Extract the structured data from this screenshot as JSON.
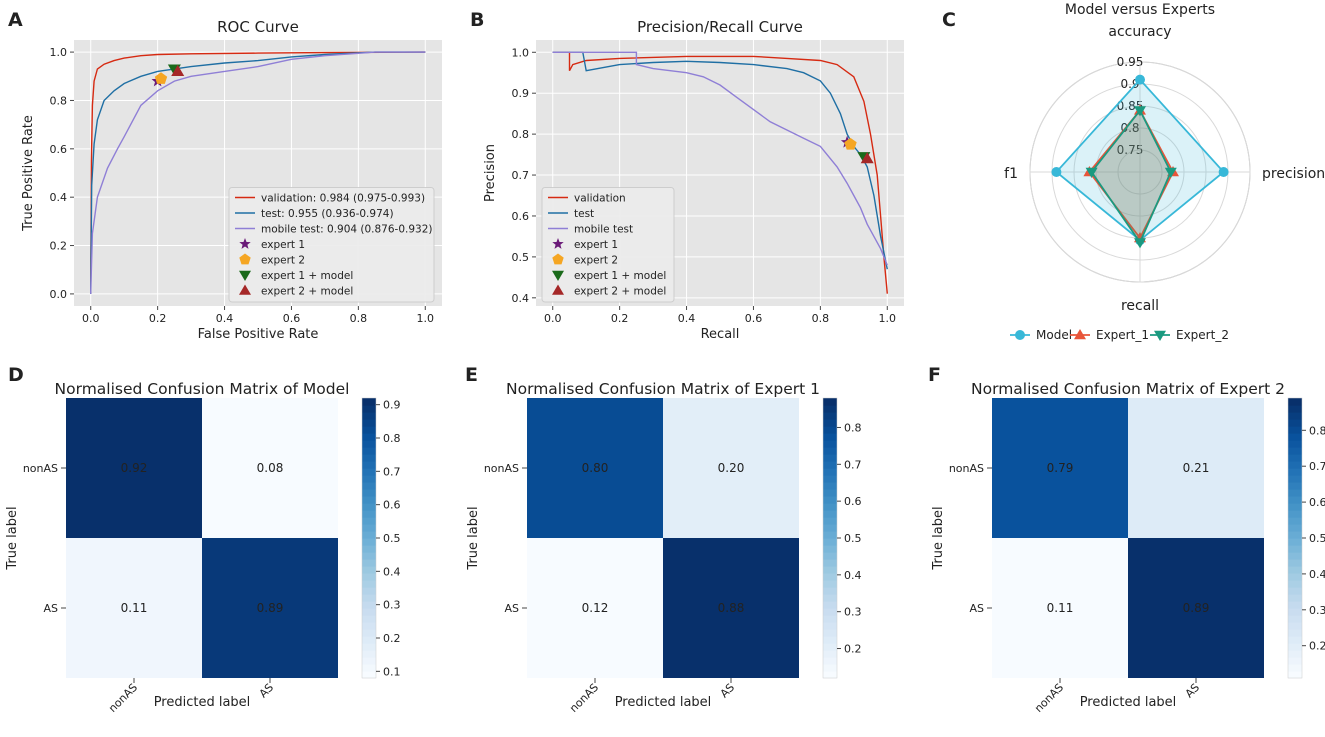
{
  "panel_letters": [
    "A",
    "B",
    "C",
    "D",
    "E",
    "F"
  ],
  "colors": {
    "validation": "#d62a12",
    "test": "#1f6fa4",
    "mobile": "#8f7fd6",
    "expert1": "#6a1a78",
    "expert2": "#f5a623",
    "expert1_model": "#1a6a1a",
    "expert2_model": "#a52828",
    "radar_model": "#38b8d8",
    "radar_e1": "#e8553a",
    "radar_e2": "#1a9a80",
    "plot_bg": "#e5e5e5",
    "grid": "#ffffff"
  },
  "chart_data": [
    {
      "id": "A",
      "type": "line",
      "title": "ROC Curve",
      "xlabel": "False Positive Rate",
      "ylabel": "True Positive Rate",
      "xlim": [
        -0.05,
        1.05
      ],
      "ylim": [
        -0.05,
        1.05
      ],
      "xticks": [
        0.0,
        0.2,
        0.4,
        0.6,
        0.8,
        1.0
      ],
      "yticks": [
        0.0,
        0.2,
        0.4,
        0.6,
        0.8,
        1.0
      ],
      "xtick_labels": [
        "0.0",
        "0.2",
        "0.4",
        "0.6",
        "0.8",
        "1.0"
      ],
      "ytick_labels": [
        "0.0",
        "0.2",
        "0.4",
        "0.6",
        "0.8",
        "1.0"
      ],
      "legend_position": "bottom-right",
      "series": [
        {
          "key": "validation",
          "label": "validation: 0.984 (0.975-0.993)",
          "color_key": "validation",
          "points": [
            [
              0,
              0
            ],
            [
              0.002,
              0.55
            ],
            [
              0.005,
              0.78
            ],
            [
              0.01,
              0.88
            ],
            [
              0.02,
              0.93
            ],
            [
              0.04,
              0.95
            ],
            [
              0.07,
              0.965
            ],
            [
              0.1,
              0.975
            ],
            [
              0.15,
              0.985
            ],
            [
              0.2,
              0.99
            ],
            [
              0.3,
              0.993
            ],
            [
              0.5,
              0.996
            ],
            [
              0.7,
              0.998
            ],
            [
              1.0,
              1.0
            ]
          ]
        },
        {
          "key": "test",
          "label": "test: 0.955 (0.936-0.974)",
          "color_key": "test",
          "points": [
            [
              0,
              0
            ],
            [
              0.003,
              0.45
            ],
            [
              0.01,
              0.62
            ],
            [
              0.02,
              0.72
            ],
            [
              0.04,
              0.8
            ],
            [
              0.07,
              0.84
            ],
            [
              0.1,
              0.87
            ],
            [
              0.15,
              0.9
            ],
            [
              0.2,
              0.92
            ],
            [
              0.3,
              0.94
            ],
            [
              0.4,
              0.955
            ],
            [
              0.5,
              0.965
            ],
            [
              0.6,
              0.98
            ],
            [
              0.7,
              0.99
            ],
            [
              0.85,
              1.0
            ],
            [
              1.0,
              1.0
            ]
          ]
        },
        {
          "key": "mobile",
          "label": "mobile test: 0.904 (0.876-0.932)",
          "color_key": "mobile",
          "points": [
            [
              0,
              0
            ],
            [
              0.005,
              0.25
            ],
            [
              0.02,
              0.4
            ],
            [
              0.05,
              0.52
            ],
            [
              0.08,
              0.6
            ],
            [
              0.1,
              0.65
            ],
            [
              0.15,
              0.78
            ],
            [
              0.2,
              0.84
            ],
            [
              0.25,
              0.88
            ],
            [
              0.3,
              0.9
            ],
            [
              0.4,
              0.92
            ],
            [
              0.5,
              0.94
            ],
            [
              0.6,
              0.97
            ],
            [
              0.7,
              0.985
            ],
            [
              0.8,
              0.995
            ],
            [
              0.85,
              1.0
            ],
            [
              1.0,
              1.0
            ]
          ]
        }
      ],
      "markers": [
        {
          "key": "expert1",
          "label": "expert 1",
          "shape": "star",
          "x": 0.2,
          "y": 0.88,
          "color_key": "expert1"
        },
        {
          "key": "expert2",
          "label": "expert 2",
          "shape": "pentagon",
          "x": 0.21,
          "y": 0.89,
          "color_key": "expert2"
        },
        {
          "key": "expert1_model",
          "label": "expert 1 + model",
          "shape": "triangle-down",
          "x": 0.25,
          "y": 0.93,
          "color_key": "expert1_model"
        },
        {
          "key": "expert2_model",
          "label": "expert 2 + model",
          "shape": "triangle-up",
          "x": 0.26,
          "y": 0.92,
          "color_key": "expert2_model"
        }
      ]
    },
    {
      "id": "B",
      "type": "line",
      "title": "Precision/Recall Curve",
      "xlabel": "Recall",
      "ylabel": "Precision",
      "xlim": [
        -0.05,
        1.05
      ],
      "ylim": [
        0.38,
        1.03
      ],
      "xticks": [
        0.0,
        0.2,
        0.4,
        0.6,
        0.8,
        1.0
      ],
      "yticks": [
        0.4,
        0.5,
        0.6,
        0.7,
        0.8,
        0.9,
        1.0
      ],
      "xtick_labels": [
        "0.0",
        "0.2",
        "0.4",
        "0.6",
        "0.8",
        "1.0"
      ],
      "ytick_labels": [
        "0.4",
        "0.5",
        "0.6",
        "0.7",
        "0.8",
        "0.9",
        "1.0"
      ],
      "legend_position": "bottom-left",
      "series": [
        {
          "key": "validation",
          "label": "validation",
          "color_key": "validation",
          "points": [
            [
              0,
              1.0
            ],
            [
              0.05,
              1.0
            ],
            [
              0.05,
              0.955
            ],
            [
              0.06,
              0.97
            ],
            [
              0.1,
              0.98
            ],
            [
              0.2,
              0.985
            ],
            [
              0.4,
              0.99
            ],
            [
              0.6,
              0.99
            ],
            [
              0.7,
              0.985
            ],
            [
              0.8,
              0.98
            ],
            [
              0.85,
              0.97
            ],
            [
              0.9,
              0.94
            ],
            [
              0.93,
              0.88
            ],
            [
              0.95,
              0.8
            ],
            [
              0.97,
              0.7
            ],
            [
              0.98,
              0.6
            ],
            [
              0.99,
              0.5
            ],
            [
              1.0,
              0.41
            ]
          ]
        },
        {
          "key": "test",
          "label": "test",
          "color_key": "test",
          "points": [
            [
              0,
              1.0
            ],
            [
              0.09,
              1.0
            ],
            [
              0.1,
              0.955
            ],
            [
              0.2,
              0.97
            ],
            [
              0.3,
              0.975
            ],
            [
              0.4,
              0.978
            ],
            [
              0.5,
              0.975
            ],
            [
              0.6,
              0.97
            ],
            [
              0.7,
              0.96
            ],
            [
              0.75,
              0.95
            ],
            [
              0.8,
              0.93
            ],
            [
              0.83,
              0.9
            ],
            [
              0.86,
              0.85
            ],
            [
              0.88,
              0.8
            ],
            [
              0.9,
              0.77
            ],
            [
              0.92,
              0.75
            ],
            [
              0.94,
              0.72
            ],
            [
              0.96,
              0.65
            ],
            [
              0.98,
              0.55
            ],
            [
              1.0,
              0.47
            ]
          ]
        },
        {
          "key": "mobile",
          "label": "mobile test",
          "color_key": "mobile",
          "points": [
            [
              0,
              1.0
            ],
            [
              0.25,
              1.0
            ],
            [
              0.25,
              0.97
            ],
            [
              0.3,
              0.96
            ],
            [
              0.4,
              0.95
            ],
            [
              0.45,
              0.94
            ],
            [
              0.5,
              0.92
            ],
            [
              0.55,
              0.89
            ],
            [
              0.6,
              0.86
            ],
            [
              0.65,
              0.83
            ],
            [
              0.7,
              0.81
            ],
            [
              0.75,
              0.79
            ],
            [
              0.8,
              0.77
            ],
            [
              0.85,
              0.72
            ],
            [
              0.88,
              0.68
            ],
            [
              0.9,
              0.65
            ],
            [
              0.92,
              0.62
            ],
            [
              0.94,
              0.58
            ],
            [
              0.96,
              0.55
            ],
            [
              0.98,
              0.52
            ],
            [
              1.0,
              0.48
            ]
          ]
        }
      ],
      "markers": [
        {
          "key": "expert1",
          "label": "expert 1",
          "shape": "star",
          "x": 0.88,
          "y": 0.78,
          "color_key": "expert1"
        },
        {
          "key": "expert2",
          "label": "expert 2",
          "shape": "pentagon",
          "x": 0.89,
          "y": 0.775,
          "color_key": "expert2"
        },
        {
          "key": "expert1_model",
          "label": "expert 1 + model",
          "shape": "triangle-down",
          "x": 0.93,
          "y": 0.745,
          "color_key": "expert1_model"
        },
        {
          "key": "expert2_model",
          "label": "expert 2 + model",
          "shape": "triangle-up",
          "x": 0.94,
          "y": 0.74,
          "color_key": "expert2_model"
        }
      ]
    },
    {
      "id": "C",
      "type": "radar",
      "title": "Model versus Experts",
      "axes": [
        "accuracy",
        "precision",
        "recall",
        "f1"
      ],
      "rmin": 0.7,
      "rmax": 0.95,
      "rticks": [
        0.75,
        0.8,
        0.85,
        0.9,
        0.95
      ],
      "rtick_labels": [
        "0.75",
        "0.8",
        "0.85",
        "0.9",
        "0.95"
      ],
      "series": [
        {
          "name": "Model",
          "values": [
            0.91,
            0.89,
            0.855,
            0.89
          ],
          "color_key": "radar_model",
          "marker": "circle"
        },
        {
          "name": "Expert_1",
          "values": [
            0.84,
            0.775,
            0.85,
            0.815
          ],
          "color_key": "radar_e1",
          "marker": "triangle-up"
        },
        {
          "name": "Expert_2",
          "values": [
            0.84,
            0.77,
            0.86,
            0.81
          ],
          "color_key": "radar_e2",
          "marker": "triangle-down"
        }
      ]
    },
    {
      "id": "D",
      "type": "heatmap",
      "title": "Normalised Confusion Matrix of Model",
      "xlabel": "Predicted label",
      "ylabel": "True label",
      "row_labels": [
        "nonAS",
        "AS"
      ],
      "col_labels": [
        "nonAS",
        "AS"
      ],
      "values": [
        [
          0.92,
          0.08
        ],
        [
          0.11,
          0.89
        ]
      ],
      "cell_labels": [
        [
          "0.92",
          "0.08"
        ],
        [
          "0.11",
          "0.89"
        ]
      ],
      "colorbar_ticks": [
        0.1,
        0.2,
        0.3,
        0.4,
        0.5,
        0.6,
        0.7,
        0.8,
        0.9
      ],
      "colorbar_tick_labels": [
        "0.1",
        "0.2",
        "0.3",
        "0.4",
        "0.5",
        "0.6",
        "0.7",
        "0.8",
        "0.9"
      ],
      "vmin": 0.08,
      "vmax": 0.92
    },
    {
      "id": "E",
      "type": "heatmap",
      "title": "Normalised Confusion Matrix of Expert 1",
      "xlabel": "Predicted label",
      "ylabel": "True label",
      "row_labels": [
        "nonAS",
        "AS"
      ],
      "col_labels": [
        "nonAS",
        "AS"
      ],
      "values": [
        [
          0.8,
          0.2
        ],
        [
          0.12,
          0.88
        ]
      ],
      "cell_labels": [
        [
          "0.80",
          "0.20"
        ],
        [
          "0.12",
          "0.88"
        ]
      ],
      "colorbar_ticks": [
        0.2,
        0.3,
        0.4,
        0.5,
        0.6,
        0.7,
        0.8
      ],
      "colorbar_tick_labels": [
        "0.2",
        "0.3",
        "0.4",
        "0.5",
        "0.6",
        "0.7",
        "0.8"
      ],
      "vmin": 0.12,
      "vmax": 0.88
    },
    {
      "id": "F",
      "type": "heatmap",
      "title": "Normalised Confusion Matrix of Expert 2",
      "xlabel": "Predicted label",
      "ylabel": "True label",
      "row_labels": [
        "nonAS",
        "AS"
      ],
      "col_labels": [
        "nonAS",
        "AS"
      ],
      "values": [
        [
          0.79,
          0.21
        ],
        [
          0.11,
          0.89
        ]
      ],
      "cell_labels": [
        [
          "0.79",
          "0.21"
        ],
        [
          "0.11",
          "0.89"
        ]
      ],
      "colorbar_ticks": [
        0.2,
        0.3,
        0.4,
        0.5,
        0.6,
        0.7,
        0.8
      ],
      "colorbar_tick_labels": [
        "0.2",
        "0.3",
        "0.4",
        "0.5",
        "0.6",
        "0.7",
        "0.8"
      ],
      "vmin": 0.11,
      "vmax": 0.89
    }
  ]
}
